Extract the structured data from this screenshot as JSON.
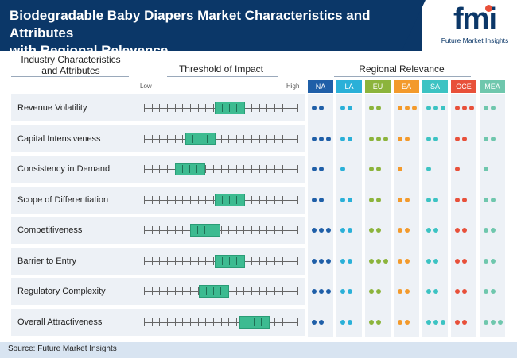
{
  "header": {
    "title_line1": "Biodegradable Baby Diapers Market Characteristics and Attributes",
    "title_line2": "with Regional Relevence",
    "logo_text": "fmi",
    "logo_tagline": "Future Market Insights"
  },
  "columns": {
    "industry_line1": "Industry Characteristics",
    "industry_line2": "and Attributes",
    "threshold": "Threshold of Impact",
    "regional": "Regional Relevance",
    "low": "Low",
    "high": "High"
  },
  "regions": [
    {
      "code": "NA",
      "color": "#1f5fa8"
    },
    {
      "code": "LA",
      "color": "#2ab0d8"
    },
    {
      "code": "EU",
      "color": "#8cb43c"
    },
    {
      "code": "EA",
      "color": "#f39a2c"
    },
    {
      "code": "SA",
      "color": "#3cc3c3"
    },
    {
      "code": "OCE",
      "color": "#e8503a"
    },
    {
      "code": "MEA",
      "color": "#6fc7ad"
    }
  ],
  "rows": [
    {
      "label": "Revenue Volatility",
      "impact_start": 0.46,
      "dots": [
        2,
        2,
        2,
        3,
        3,
        3,
        2
      ]
    },
    {
      "label": "Capital Intensiveness",
      "impact_start": 0.27,
      "dots": [
        3,
        2,
        3,
        2,
        2,
        2,
        2
      ]
    },
    {
      "label": "Consistency in Demand",
      "impact_start": 0.2,
      "dots": [
        2,
        1,
        2,
        1,
        1,
        1,
        1
      ]
    },
    {
      "label": "Scope of Differentiation",
      "impact_start": 0.46,
      "dots": [
        2,
        2,
        2,
        2,
        2,
        2,
        2
      ]
    },
    {
      "label": "Competitiveness",
      "impact_start": 0.3,
      "dots": [
        3,
        2,
        2,
        2,
        2,
        2,
        2
      ]
    },
    {
      "label": "Barrier to Entry",
      "impact_start": 0.46,
      "dots": [
        3,
        2,
        3,
        2,
        2,
        2,
        2
      ]
    },
    {
      "label": "Regulatory Complexity",
      "impact_start": 0.36,
      "dots": [
        3,
        2,
        2,
        2,
        2,
        2,
        2
      ]
    },
    {
      "label": "Overall Attractiveness",
      "impact_start": 0.62,
      "dots": [
        2,
        2,
        2,
        2,
        3,
        2,
        3
      ]
    }
  ],
  "footer": {
    "source": "Source: Future Market Insights"
  }
}
